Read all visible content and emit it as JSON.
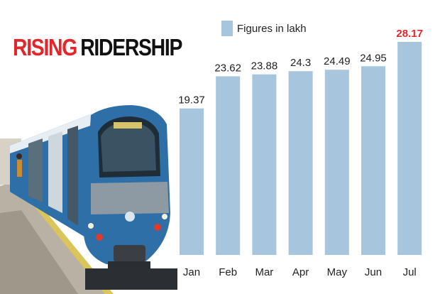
{
  "title": {
    "word1": "RISING",
    "word2": "RIDERSHIP"
  },
  "legend": {
    "label": "Figures in lakh"
  },
  "colors": {
    "bar": "#a7c5dc",
    "highlight_label": "#e3262b",
    "title_accent": "#e3262b",
    "text": "#222222"
  },
  "chart_data": {
    "type": "bar",
    "title": "RISING RIDERSHIP",
    "legend": [
      "Figures in lakh"
    ],
    "categories": [
      "Jan",
      "Feb",
      "Mar",
      "Apr",
      "May",
      "Jun",
      "Jul"
    ],
    "series": [
      {
        "name": "Figures in lakh",
        "values": [
          19.37,
          23.62,
          23.88,
          24.3,
          24.49,
          24.95,
          28.17
        ]
      }
    ],
    "value_labels": [
      "19.37",
      "23.62",
      "23.88",
      "24.3",
      "24.49",
      "24.95",
      "28.17"
    ],
    "highlight_index": 6,
    "ylim": [
      0,
      28.17
    ],
    "grid": false,
    "legend_position": "top"
  }
}
